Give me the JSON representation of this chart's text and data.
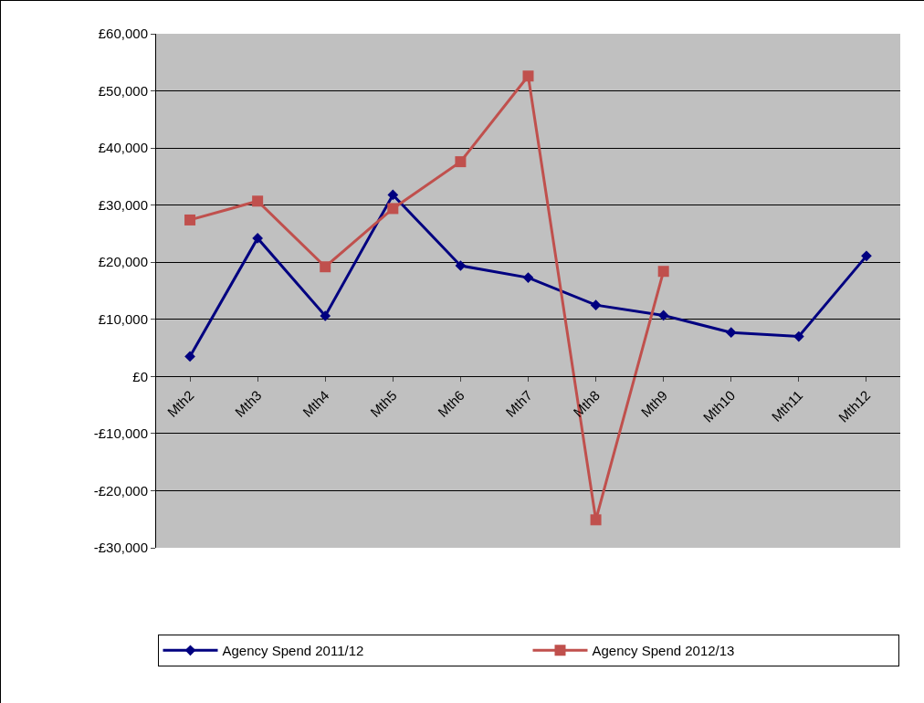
{
  "chart_data": {
    "type": "line",
    "categories": [
      "Mth2",
      "Mth3",
      "Mth4",
      "Mth5",
      "Mth6",
      "Mth7",
      "Mth8",
      "Mth9",
      "Mth10",
      "Mth11",
      "Mth12"
    ],
    "series": [
      {
        "name": "Agency Spend 2011/12",
        "color": "#000080",
        "marker": "diamond",
        "values": [
          3500,
          24200,
          10600,
          31800,
          19400,
          17300,
          12500,
          10700,
          7700,
          7000,
          21100
        ]
      },
      {
        "name": "Agency Spend 2012/13",
        "color": "#c0504d",
        "marker": "square",
        "values": [
          27400,
          30700,
          19200,
          29400,
          37600,
          52600,
          -25100,
          18400,
          null,
          null,
          null
        ]
      }
    ],
    "ylim": [
      -30000,
      60000
    ],
    "yticks": [
      {
        "value": -30000,
        "label": "-£30,000"
      },
      {
        "value": -20000,
        "label": "-£20,000"
      },
      {
        "value": -10000,
        "label": "-£10,000"
      },
      {
        "value": 0,
        "label": "£0"
      },
      {
        "value": 10000,
        "label": "£10,000"
      },
      {
        "value": 20000,
        "label": "£20,000"
      },
      {
        "value": 30000,
        "label": "£30,000"
      },
      {
        "value": 40000,
        "label": "£40,000"
      },
      {
        "value": 50000,
        "label": "£50,000"
      },
      {
        "value": 60000,
        "label": "£60,000"
      }
    ],
    "grid": "y",
    "legend": "bottom",
    "line_style": "solid"
  }
}
